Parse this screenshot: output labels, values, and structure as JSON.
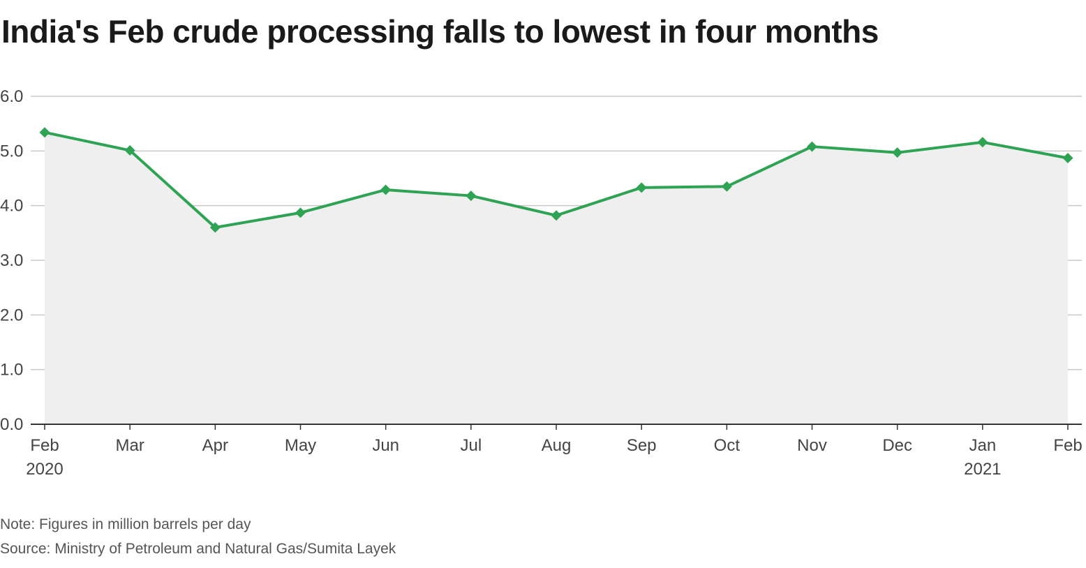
{
  "chart_data": {
    "type": "line",
    "title": "India's Feb crude processing falls to lowest in four months",
    "categories": [
      "Feb",
      "Mar",
      "Apr",
      "May",
      "Jun",
      "Jul",
      "Aug",
      "Sep",
      "Oct",
      "Nov",
      "Dec",
      "Jan",
      "Feb"
    ],
    "year_labels": [
      "2020",
      "",
      "",
      "",
      "",
      "",
      "",
      "",
      "",
      "",
      "",
      "2021",
      ""
    ],
    "series": [
      {
        "values": [
          5.34,
          5.01,
          3.6,
          3.87,
          4.29,
          4.18,
          3.82,
          4.33,
          4.35,
          5.08,
          4.97,
          5.16,
          4.87
        ]
      }
    ],
    "ylim": [
      0,
      6
    ],
    "yticks": [
      "0.0",
      "1.0",
      "2.0",
      "3.0",
      "4.0",
      "5.0",
      "6.0"
    ],
    "grid": true,
    "colors": {
      "line": "#2ea353",
      "area": "#efefef",
      "grid": "#c8c8c8",
      "axis": "#333333"
    }
  },
  "footer": {
    "note": "Note: Figures in million barrels per day",
    "source": "Source: Ministry of Petroleum and Natural Gas/Sumita Layek"
  }
}
